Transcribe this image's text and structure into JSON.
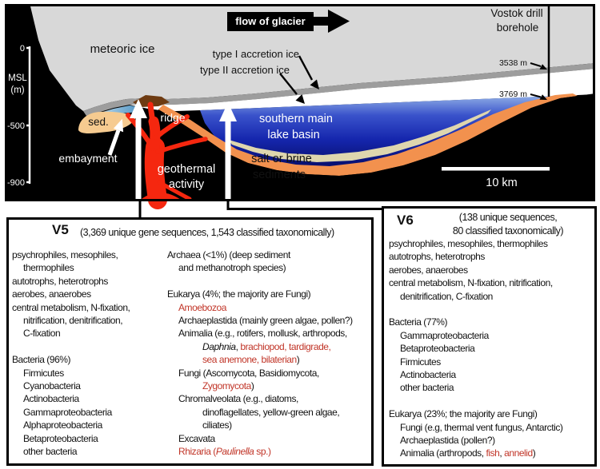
{
  "diagram": {
    "flow_of_glacier": "flow of glacier",
    "meteoric_ice": "meteoric ice",
    "type_i": "type I accretion ice",
    "type_ii": "type II accretion ice",
    "vostok_line1": "Vostok drill",
    "vostok_line2": "borehole",
    "depth_3538": "3538 m",
    "depth_3769": "3769 m",
    "msl_line1": "MSL",
    "msl_line2": "(m)",
    "tick_0": "0",
    "tick_minus500": "-500",
    "tick_minus900": "-900",
    "sed": "sed.",
    "ridge": "ridge",
    "embayment": "embayment",
    "geothermal_line1": "geothermal",
    "geothermal_line2": "activity",
    "basin_line1": "southern main",
    "basin_line2": "lake basin",
    "salt_line1": "salt or brine",
    "salt_line2": "sediments",
    "scale_bar": "10 km"
  },
  "v5": {
    "title": "V5",
    "subtitle": "(3,369 unique gene sequences, 1,543 classified taxonomically)",
    "left_lines": [
      {
        "ind": 0,
        "seg": [
          {
            "t": "psychrophiles, mesophiles,"
          }
        ]
      },
      {
        "ind": 1,
        "seg": [
          {
            "t": "thermophiles"
          }
        ]
      },
      {
        "ind": 0,
        "seg": [
          {
            "t": "autotrophs, heterotrophs"
          }
        ]
      },
      {
        "ind": 0,
        "seg": [
          {
            "t": "aerobes, anaerobes"
          }
        ]
      },
      {
        "ind": 0,
        "seg": [
          {
            "t": "central metabolism, N-fixation,"
          }
        ]
      },
      {
        "ind": 1,
        "seg": [
          {
            "t": "nitrification, denitrification,"
          }
        ]
      },
      {
        "ind": 1,
        "seg": [
          {
            "t": "C-fixation"
          }
        ]
      },
      {
        "ind": 0,
        "seg": []
      },
      {
        "ind": 0,
        "seg": [
          {
            "t": "Bacteria (96%)"
          }
        ]
      },
      {
        "ind": 1,
        "seg": [
          {
            "t": "Firmicutes"
          }
        ]
      },
      {
        "ind": 1,
        "seg": [
          {
            "t": "Cyanobacteria"
          }
        ]
      },
      {
        "ind": 1,
        "seg": [
          {
            "t": "Actinobacteria"
          }
        ]
      },
      {
        "ind": 1,
        "seg": [
          {
            "t": "Gammaproteobacteria"
          }
        ]
      },
      {
        "ind": 1,
        "seg": [
          {
            "t": "Alphaproteobacteria"
          }
        ]
      },
      {
        "ind": 1,
        "seg": [
          {
            "t": "Betaproteobacteria"
          }
        ]
      },
      {
        "ind": 1,
        "seg": [
          {
            "t": "other bacteria"
          }
        ]
      }
    ],
    "right_lines": [
      {
        "ind": 0,
        "seg": [
          {
            "t": "Archaea (<1%) (deep sediment"
          }
        ]
      },
      {
        "ind": 1,
        "seg": [
          {
            "t": "and methanotroph species)"
          }
        ]
      },
      {
        "ind": 0,
        "seg": []
      },
      {
        "ind": 0,
        "seg": [
          {
            "t": "Eukarya (4%; the majority are Fungi)"
          }
        ]
      },
      {
        "ind": 1,
        "seg": [
          {
            "t": "Amoebozoa",
            "c": "r"
          }
        ]
      },
      {
        "ind": 1,
        "seg": [
          {
            "t": "Archaeplastida (mainly green algae, pollen?)"
          }
        ]
      },
      {
        "ind": 1,
        "seg": [
          {
            "t": "Animalia (e.g., rotifers, mollusk, arthropods,"
          }
        ]
      },
      {
        "ind": 2,
        "seg": [
          {
            "t": "Daphnia",
            "i": 1
          },
          {
            "t": ", "
          },
          {
            "t": "brachiopod, tardigrade,",
            "c": "r"
          }
        ]
      },
      {
        "ind": 2,
        "seg": [
          {
            "t": "sea anemone, bilaterian",
            "c": "r"
          },
          {
            "t": ")"
          }
        ]
      },
      {
        "ind": 1,
        "seg": [
          {
            "t": "Fungi (Ascomycota, Basidiomycota,"
          }
        ]
      },
      {
        "ind": 2,
        "seg": [
          {
            "t": "Zygomycota",
            "c": "r"
          },
          {
            "t": ")"
          }
        ]
      },
      {
        "ind": 1,
        "seg": [
          {
            "t": "Chromalveolata (e.g., diatoms,"
          }
        ]
      },
      {
        "ind": 2,
        "seg": [
          {
            "t": "dinoflagellates, yellow-green algae,"
          }
        ]
      },
      {
        "ind": 2,
        "seg": [
          {
            "t": "ciliates)"
          }
        ]
      },
      {
        "ind": 1,
        "seg": [
          {
            "t": "Excavata"
          }
        ]
      },
      {
        "ind": 1,
        "seg": [
          {
            "t": "Rhizaria (",
            "c": "r"
          },
          {
            "t": "Paulinella",
            "c": "r",
            "i": 1
          },
          {
            "t": " sp.)",
            "c": "r"
          }
        ]
      }
    ]
  },
  "v6": {
    "title": "V6",
    "subtitle_line1": "(138 unique sequences,",
    "subtitle_line2": "80 classified taxonomically)",
    "lines": [
      {
        "ind": 0,
        "seg": [
          {
            "t": "psychrophiles, mesophiles, thermophiles"
          }
        ]
      },
      {
        "ind": 0,
        "seg": [
          {
            "t": "autotrophs, heterotrophs"
          }
        ]
      },
      {
        "ind": 0,
        "seg": [
          {
            "t": "aerobes, anaerobes"
          }
        ]
      },
      {
        "ind": 0,
        "seg": [
          {
            "t": "central metabolism, N-fixation, nitrification,"
          }
        ]
      },
      {
        "ind": 1,
        "seg": [
          {
            "t": "denitrification, C-fixation"
          }
        ]
      },
      {
        "ind": 0,
        "seg": []
      },
      {
        "ind": 0,
        "seg": [
          {
            "t": "Bacteria (77%)"
          }
        ]
      },
      {
        "ind": 1,
        "seg": [
          {
            "t": "Gammaproteobacteria"
          }
        ]
      },
      {
        "ind": 1,
        "seg": [
          {
            "t": "Betaproteobacteria"
          }
        ]
      },
      {
        "ind": 1,
        "seg": [
          {
            "t": "Firmicutes"
          }
        ]
      },
      {
        "ind": 1,
        "seg": [
          {
            "t": "Actinobacteria"
          }
        ]
      },
      {
        "ind": 1,
        "seg": [
          {
            "t": "other bacteria"
          }
        ]
      },
      {
        "ind": 0,
        "seg": []
      },
      {
        "ind": 0,
        "seg": [
          {
            "t": "Eukarya (23%; the majority are Fungi)"
          }
        ]
      },
      {
        "ind": 1,
        "seg": [
          {
            "t": "Fungi (e.g, thermal vent fungus, Antarctic)"
          }
        ]
      },
      {
        "ind": 1,
        "seg": [
          {
            "t": "Archaeplastida (pollen?)"
          }
        ]
      },
      {
        "ind": 1,
        "seg": [
          {
            "t": "Animalia (arthropods, "
          },
          {
            "t": "fish",
            "c": "r"
          },
          {
            "t": ", "
          },
          {
            "t": "annelid",
            "c": "r"
          },
          {
            "t": ")"
          }
        ]
      }
    ]
  },
  "colors": {
    "accent_red_text": "#c13528",
    "geothermal_red": "#f5270f",
    "ice_gray": "#d8d8d8",
    "accretion_gray": "#9d9d9d",
    "sediment_orange": "#f2914e",
    "brine_khaki": "#ded6ae",
    "sediment_tan": "#f6cb90",
    "ridge_brown": "#6e3b12",
    "lake_blue_dark": "#0a1280"
  }
}
